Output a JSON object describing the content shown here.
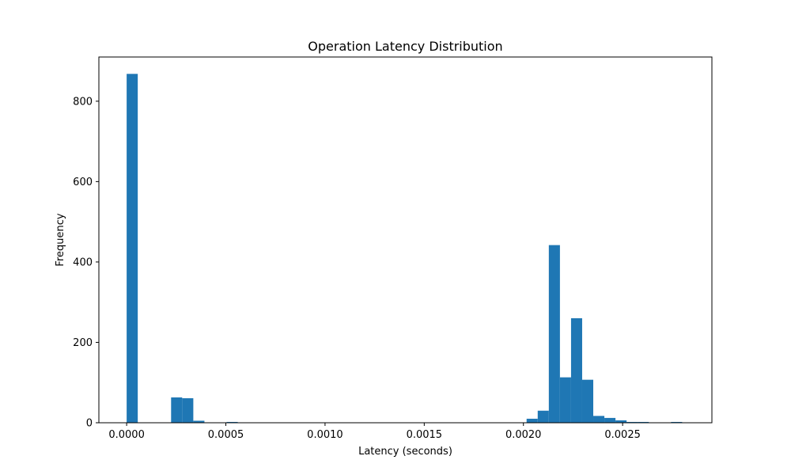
{
  "chart_data": {
    "type": "bar",
    "title": "Operation Latency Distribution",
    "xlabel": "Latency (seconds)",
    "ylabel": "Frequency",
    "xlim": [
      -0.00014,
      0.00295
    ],
    "ylim": [
      0,
      910
    ],
    "x_ticks": [
      0.0,
      0.0005,
      0.001,
      0.0015,
      0.002,
      0.0025
    ],
    "x_tick_labels": [
      "0.0000",
      "0.0005",
      "0.0010",
      "0.0015",
      "0.0020",
      "0.0025"
    ],
    "y_ticks": [
      0,
      200,
      400,
      600,
      800
    ],
    "y_tick_labels": [
      "0",
      "200",
      "400",
      "600",
      "800"
    ],
    "grid": false,
    "bar_color": "#1f77b4",
    "bin_edges": [
      0.0,
      5.6e-05,
      0.000112,
      0.000168,
      0.000224,
      0.00028,
      0.000336,
      0.000392,
      0.000448,
      0.000504,
      0.00056,
      0.000616,
      0.000672,
      0.000728,
      0.000784,
      0.00084,
      0.000896,
      0.000952,
      0.001008,
      0.001064,
      0.00112,
      0.001176,
      0.001232,
      0.001288,
      0.001344,
      0.0014,
      0.001456,
      0.001512,
      0.001568,
      0.001624,
      0.00168,
      0.001736,
      0.001792,
      0.001848,
      0.001904,
      0.00196,
      0.002016,
      0.002072,
      0.002128,
      0.002184,
      0.00224,
      0.002296,
      0.002352,
      0.002408,
      0.002464,
      0.00252,
      0.002576,
      0.002632,
      0.002688,
      0.002744,
      0.0028
    ],
    "counts": [
      868,
      0,
      0,
      0,
      63,
      61,
      5,
      0,
      0,
      2,
      0,
      0,
      0,
      0,
      0,
      0,
      0,
      0,
      0,
      0,
      0,
      0,
      0,
      0,
      0,
      0,
      0,
      0,
      0,
      0,
      0,
      0,
      0,
      0,
      0,
      0,
      10,
      30,
      442,
      113,
      260,
      107,
      17,
      12,
      6,
      2,
      2,
      0,
      1,
      2
    ]
  }
}
